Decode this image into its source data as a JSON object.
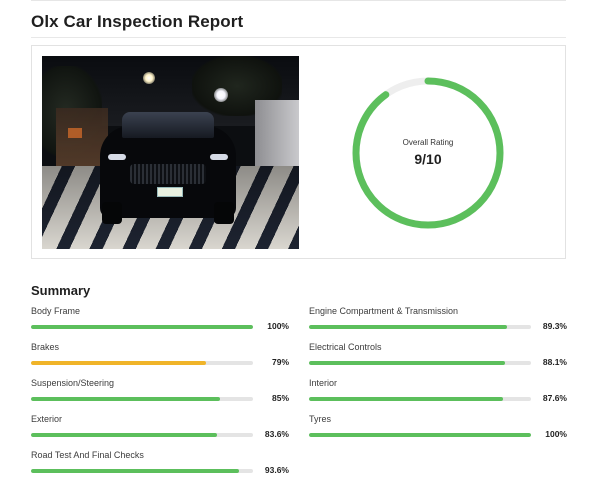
{
  "report": {
    "title": "Olx Car Inspection Report"
  },
  "overall": {
    "label": "Overall Rating",
    "value": "9/10",
    "score": 9,
    "max": 10,
    "color": "#5cbf5c",
    "track_color": "#eeeeee"
  },
  "summary": {
    "title": "Summary",
    "left": [
      {
        "label": "Body Frame",
        "value": "100%",
        "percent": 100,
        "color": "#5cbf5c"
      },
      {
        "label": "Brakes",
        "value": "79%",
        "percent": 79,
        "color": "#f0b429"
      },
      {
        "label": "Suspension/Steering",
        "value": "85%",
        "percent": 85,
        "color": "#5cbf5c"
      },
      {
        "label": "Exterior",
        "value": "83.6%",
        "percent": 83.6,
        "color": "#5cbf5c"
      },
      {
        "label": "Road Test And Final Checks",
        "value": "93.6%",
        "percent": 93.6,
        "color": "#5cbf5c"
      }
    ],
    "right": [
      {
        "label": "Engine Compartment & Transmission",
        "value": "89.3%",
        "percent": 89.3,
        "color": "#5cbf5c"
      },
      {
        "label": "Electrical Controls",
        "value": "88.1%",
        "percent": 88.1,
        "color": "#5cbf5c"
      },
      {
        "label": "Interior",
        "value": "87.6%",
        "percent": 87.6,
        "color": "#5cbf5c"
      },
      {
        "label": "Tyres",
        "value": "100%",
        "percent": 100,
        "color": "#5cbf5c"
      }
    ]
  }
}
